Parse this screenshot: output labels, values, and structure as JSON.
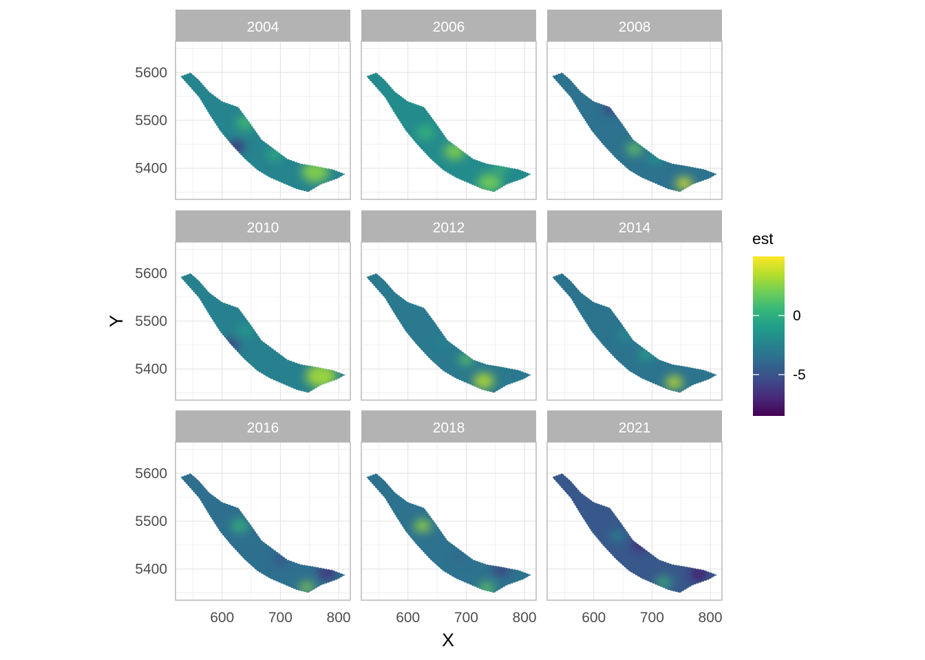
{
  "chart_data": {
    "type": "heatmap",
    "facet_variable": "year",
    "facets": [
      "2004",
      "2006",
      "2008",
      "2010",
      "2012",
      "2014",
      "2016",
      "2018",
      "2021"
    ],
    "xlabel": "X",
    "ylabel": "Y",
    "x_ticks": [
      600,
      700,
      800
    ],
    "y_ticks": [
      5400,
      5500,
      5600
    ],
    "xlim": [
      520,
      820
    ],
    "ylim": [
      5335,
      5665
    ],
    "grid": true,
    "legend": {
      "title": "est",
      "position": "right",
      "ticks": [
        0,
        -5
      ],
      "range": [
        -8.5,
        5
      ],
      "palette": "viridis"
    },
    "colors": {
      "strip_fill": "#b3b3b3",
      "strip_text": "#ffffff",
      "grid": "#e0e0e0",
      "panel_border": "#b3b3b3"
    },
    "outline": [
      [
        528,
        5592
      ],
      [
        546,
        5600
      ],
      [
        560,
        5585
      ],
      [
        578,
        5560
      ],
      [
        600,
        5540
      ],
      [
        628,
        5528
      ],
      [
        648,
        5495
      ],
      [
        668,
        5460
      ],
      [
        690,
        5440
      ],
      [
        712,
        5420
      ],
      [
        735,
        5410
      ],
      [
        760,
        5405
      ],
      [
        790,
        5398
      ],
      [
        812,
        5388
      ],
      [
        798,
        5378
      ],
      [
        770,
        5366
      ],
      [
        748,
        5350
      ],
      [
        728,
        5356
      ],
      [
        705,
        5368
      ],
      [
        682,
        5380
      ],
      [
        660,
        5396
      ],
      [
        638,
        5420
      ],
      [
        615,
        5450
      ],
      [
        596,
        5478
      ],
      [
        578,
        5512
      ],
      [
        560,
        5548
      ]
    ],
    "series": [
      {
        "name": "2004",
        "mean": -2.4,
        "hotspots": [
          {
            "x": 760,
            "y": 5392,
            "r": 42,
            "v": 2.6
          },
          {
            "x": 640,
            "y": 5495,
            "r": 28,
            "v": 0.9
          },
          {
            "x": 690,
            "y": 5428,
            "r": 22,
            "v": 0.3
          },
          {
            "x": 625,
            "y": 5445,
            "r": 26,
            "v": -6.8
          }
        ]
      },
      {
        "name": "2006",
        "mean": -2.0,
        "hotspots": [
          {
            "x": 680,
            "y": 5435,
            "r": 32,
            "v": 2.5
          },
          {
            "x": 740,
            "y": 5370,
            "r": 36,
            "v": 2.2
          },
          {
            "x": 630,
            "y": 5475,
            "r": 26,
            "v": 0.6
          },
          {
            "x": 760,
            "y": 5402,
            "r": 20,
            "v": 0.9
          }
        ]
      },
      {
        "name": "2008",
        "mean": -3.4,
        "hotspots": [
          {
            "x": 755,
            "y": 5368,
            "r": 26,
            "v": 4.2
          },
          {
            "x": 670,
            "y": 5440,
            "r": 24,
            "v": 1.8
          },
          {
            "x": 705,
            "y": 5420,
            "r": 22,
            "v": -1.2
          },
          {
            "x": 630,
            "y": 5525,
            "r": 26,
            "v": -5.8
          }
        ]
      },
      {
        "name": "2010",
        "mean": -2.6,
        "hotspots": [
          {
            "x": 770,
            "y": 5385,
            "r": 48,
            "v": 3.2
          },
          {
            "x": 640,
            "y": 5480,
            "r": 22,
            "v": -0.8
          },
          {
            "x": 615,
            "y": 5450,
            "r": 26,
            "v": -6.2
          }
        ]
      },
      {
        "name": "2012",
        "mean": -3.0,
        "hotspots": [
          {
            "x": 730,
            "y": 5375,
            "r": 32,
            "v": 3.6
          },
          {
            "x": 700,
            "y": 5420,
            "r": 22,
            "v": 1.6
          },
          {
            "x": 660,
            "y": 5455,
            "r": 22,
            "v": -2.4
          }
        ]
      },
      {
        "name": "2014",
        "mean": -3.3,
        "hotspots": [
          {
            "x": 738,
            "y": 5372,
            "r": 26,
            "v": 3.9
          },
          {
            "x": 690,
            "y": 5430,
            "r": 22,
            "v": -0.6
          },
          {
            "x": 655,
            "y": 5470,
            "r": 22,
            "v": -1.8
          }
        ]
      },
      {
        "name": "2016",
        "mean": -3.6,
        "hotspots": [
          {
            "x": 745,
            "y": 5362,
            "r": 22,
            "v": 2.6
          },
          {
            "x": 630,
            "y": 5490,
            "r": 26,
            "v": 0.4
          },
          {
            "x": 780,
            "y": 5392,
            "r": 30,
            "v": -6.6
          },
          {
            "x": 700,
            "y": 5420,
            "r": 20,
            "v": -5.5
          }
        ]
      },
      {
        "name": "2018",
        "mean": -3.4,
        "hotspots": [
          {
            "x": 625,
            "y": 5490,
            "r": 26,
            "v": 2.8
          },
          {
            "x": 735,
            "y": 5360,
            "r": 24,
            "v": 1.6
          },
          {
            "x": 760,
            "y": 5398,
            "r": 26,
            "v": -6.0
          },
          {
            "x": 690,
            "y": 5425,
            "r": 20,
            "v": -4.2
          }
        ]
      },
      {
        "name": "2021",
        "mean": -4.8,
        "hotspots": [
          {
            "x": 720,
            "y": 5372,
            "r": 24,
            "v": 0.4
          },
          {
            "x": 680,
            "y": 5450,
            "r": 24,
            "v": -7.2
          },
          {
            "x": 780,
            "y": 5390,
            "r": 28,
            "v": -7.6
          },
          {
            "x": 640,
            "y": 5470,
            "r": 22,
            "v": -2.2
          }
        ]
      }
    ]
  }
}
